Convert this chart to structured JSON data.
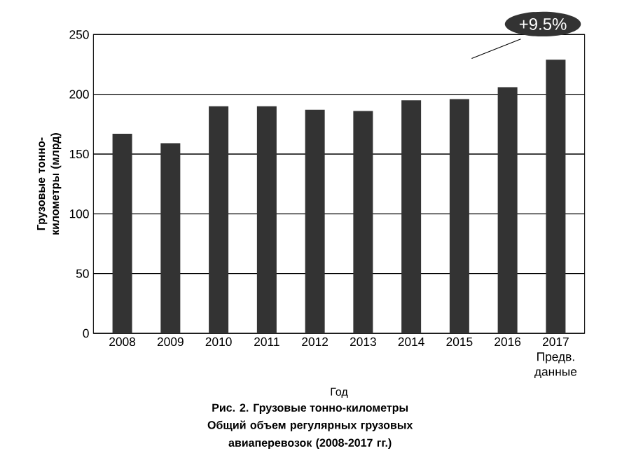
{
  "chart_data": {
    "type": "bar",
    "title": "Рис. 2. Грузовые тонно-километры",
    "subtitle": "Общий объем регулярных грузовых авиаперевозок (2008-2017 гг.)",
    "xlabel": "Год",
    "ylabel": "Грузовые тонно-километры (млрд)",
    "categories": [
      "2008",
      "2009",
      "2010",
      "2011",
      "2012",
      "2013",
      "2014",
      "2015",
      "2016",
      "2017 Предв. данные"
    ],
    "values": [
      167,
      159,
      190,
      190,
      187,
      186,
      195,
      196,
      206,
      229
    ],
    "color": "#333333",
    "ylim": [
      0,
      250
    ],
    "yticks": [
      0,
      50,
      100,
      150,
      200,
      250
    ],
    "grid": "y",
    "annotations": [
      "+9.5%"
    ]
  }
}
